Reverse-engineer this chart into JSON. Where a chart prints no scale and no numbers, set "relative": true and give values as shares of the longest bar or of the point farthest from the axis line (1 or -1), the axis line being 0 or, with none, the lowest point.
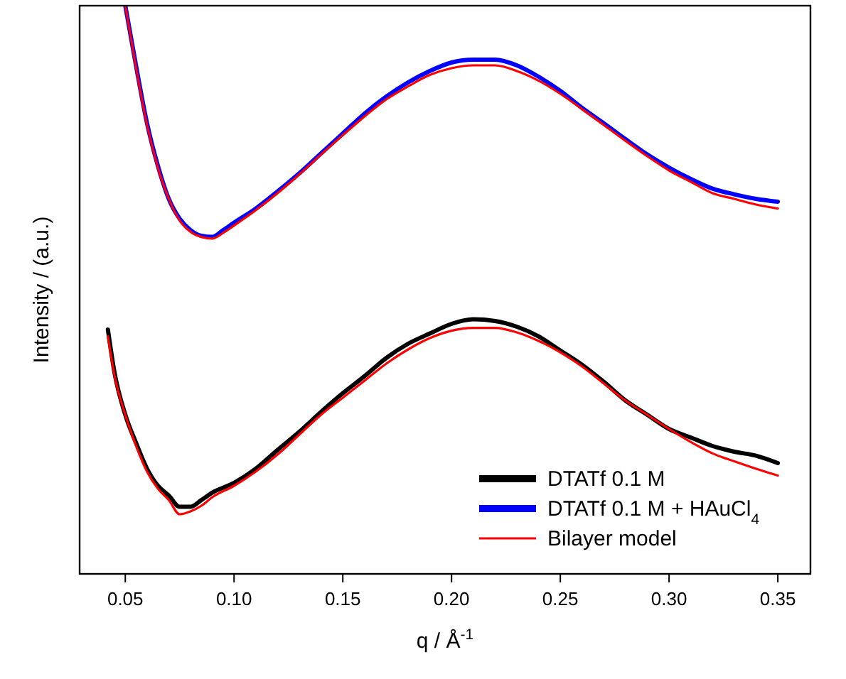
{
  "chart_data": {
    "type": "line",
    "relative": true,
    "xlabel": "q / Å$^{-1}$",
    "ylabel": "Intensity / (a.u.)",
    "xlim": [
      0.029,
      0.365
    ],
    "xticks": [
      0.05,
      {
        "value": 0.1,
        "label": "0.10"
      },
      0.15,
      {
        "value": 0.2,
        "label": "0.20"
      },
      0.25,
      {
        "value": 0.3,
        "label": "0.30"
      },
      0.35
    ],
    "legend": "bottom right",
    "grid": false,
    "marker": "none",
    "line_style": "solid",
    "series": [
      {
        "name": "DTATf 0.1 M",
        "color": "#000000",
        "x": [
          0.042,
          0.045,
          0.05,
          0.055,
          0.06,
          0.065,
          0.07,
          0.075,
          0.08,
          0.085,
          0.09,
          0.1,
          0.11,
          0.12,
          0.13,
          0.14,
          0.15,
          0.16,
          0.17,
          0.18,
          0.19,
          0.2,
          0.21,
          0.22,
          0.23,
          0.24,
          0.25,
          0.26,
          0.27,
          0.28,
          0.29,
          0.3,
          0.31,
          0.32,
          0.33,
          0.34,
          0.35
        ],
        "values": [
          0.43,
          0.355,
          0.28,
          0.23,
          0.185,
          0.155,
          0.138,
          0.118,
          0.118,
          0.13,
          0.143,
          0.16,
          0.185,
          0.218,
          0.25,
          0.285,
          0.318,
          0.348,
          0.38,
          0.405,
          0.423,
          0.44,
          0.448,
          0.445,
          0.435,
          0.418,
          0.393,
          0.368,
          0.338,
          0.305,
          0.28,
          0.255,
          0.24,
          0.225,
          0.215,
          0.208,
          0.195
        ]
      },
      {
        "name": "DTATf 0.1 M + HAuCl$_{4}$",
        "color": "#0000ff",
        "x": [
          0.05,
          0.055,
          0.06,
          0.065,
          0.07,
          0.075,
          0.08,
          0.085,
          0.09,
          0.095,
          0.1,
          0.11,
          0.12,
          0.13,
          0.14,
          0.15,
          0.16,
          0.17,
          0.18,
          0.19,
          0.2,
          0.21,
          0.22,
          0.23,
          0.24,
          0.25,
          0.26,
          0.27,
          0.28,
          0.29,
          0.3,
          0.31,
          0.32,
          0.33,
          0.34,
          0.35
        ],
        "values": [
          1.0,
          0.893,
          0.793,
          0.718,
          0.66,
          0.625,
          0.605,
          0.595,
          0.593,
          0.605,
          0.618,
          0.643,
          0.673,
          0.705,
          0.74,
          0.775,
          0.81,
          0.84,
          0.865,
          0.885,
          0.9,
          0.905,
          0.905,
          0.895,
          0.875,
          0.85,
          0.82,
          0.793,
          0.765,
          0.738,
          0.715,
          0.695,
          0.678,
          0.668,
          0.66,
          0.655
        ]
      },
      {
        "name": "Bilayer model",
        "color": "#ff0000",
        "x": [
          0.042,
          0.045,
          0.05,
          0.055,
          0.06,
          0.065,
          0.07,
          0.075,
          0.08,
          0.085,
          0.09,
          0.1,
          0.11,
          0.12,
          0.13,
          0.14,
          0.15,
          0.16,
          0.17,
          0.18,
          0.19,
          0.2,
          0.21,
          0.22,
          0.23,
          0.24,
          0.25,
          0.26,
          0.27,
          0.28,
          0.29,
          0.3,
          0.31,
          0.32,
          0.33,
          0.34,
          0.35
        ],
        "values": [
          0.418,
          0.35,
          0.28,
          0.225,
          0.18,
          0.15,
          0.13,
          0.105,
          0.11,
          0.12,
          0.135,
          0.155,
          0.18,
          0.21,
          0.245,
          0.28,
          0.31,
          0.34,
          0.37,
          0.395,
          0.415,
          0.428,
          0.433,
          0.433,
          0.425,
          0.41,
          0.39,
          0.365,
          0.335,
          0.305,
          0.28,
          0.255,
          0.232,
          0.212,
          0.198,
          0.185,
          0.173
        ]
      },
      {
        "color": "#ff0000",
        "x": [
          0.05,
          0.055,
          0.06,
          0.065,
          0.07,
          0.075,
          0.08,
          0.085,
          0.09,
          0.095,
          0.1,
          0.11,
          0.12,
          0.13,
          0.14,
          0.15,
          0.16,
          0.17,
          0.18,
          0.19,
          0.2,
          0.21,
          0.22,
          0.23,
          0.24,
          0.25,
          0.26,
          0.27,
          0.28,
          0.29,
          0.3,
          0.31,
          0.32,
          0.33,
          0.34,
          0.35
        ],
        "values": [
          1.0,
          0.89,
          0.79,
          0.715,
          0.66,
          0.622,
          0.602,
          0.593,
          0.59,
          0.6,
          0.613,
          0.64,
          0.67,
          0.703,
          0.738,
          0.772,
          0.805,
          0.835,
          0.858,
          0.878,
          0.89,
          0.895,
          0.895,
          0.885,
          0.868,
          0.845,
          0.818,
          0.79,
          0.762,
          0.735,
          0.71,
          0.69,
          0.67,
          0.66,
          0.65,
          0.643
        ]
      }
    ]
  }
}
